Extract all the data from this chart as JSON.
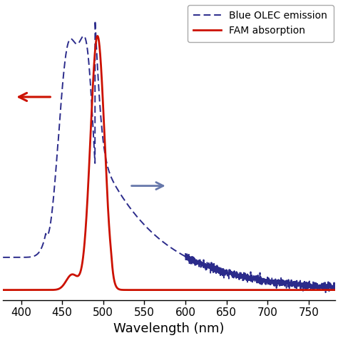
{
  "xlim": [
    378,
    782
  ],
  "xlabel": "Wavelength (nm)",
  "xticks": [
    400,
    450,
    500,
    550,
    600,
    650,
    700,
    750
  ],
  "fam_color": "#cc1100",
  "olec_color": "#2b2b8b",
  "legend_labels": [
    "FAM absorption",
    "Blue OLEC emission"
  ],
  "background_color": "#ffffff",
  "figsize": [
    4.74,
    4.74
  ],
  "dpi": 100
}
